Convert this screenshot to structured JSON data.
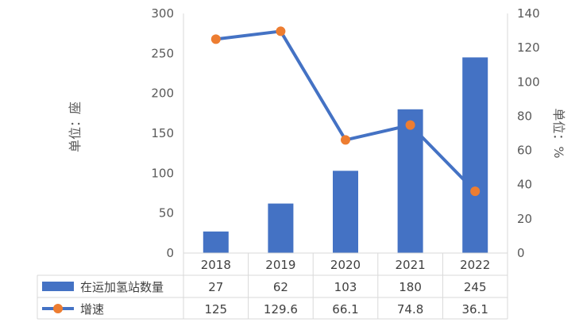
{
  "chart_data": {
    "type": "bar",
    "categories": [
      "2018",
      "2019",
      "2020",
      "2021",
      "2022"
    ],
    "series": [
      {
        "name": "在运加氢站数量",
        "type": "bar",
        "axis": "left",
        "color": "#4472C4",
        "values": [
          27,
          62,
          103,
          180,
          245
        ],
        "labels": [
          "27",
          "62",
          "103",
          "180",
          "245"
        ]
      },
      {
        "name": "增速",
        "type": "line",
        "axis": "right",
        "color": "#4472C4",
        "marker_color": "#ED7D31",
        "values": [
          125,
          129.6,
          66.1,
          74.8,
          36.1
        ],
        "labels": [
          "125",
          "129.6",
          "66.1",
          "74.8",
          "36.1"
        ]
      }
    ],
    "y_left": {
      "label": "单位：座",
      "ylim": [
        0,
        300
      ],
      "ticks": [
        0,
        50,
        100,
        150,
        200,
        250,
        300
      ],
      "tick_labels": [
        "0",
        "50",
        "100",
        "150",
        "200",
        "250",
        "300"
      ]
    },
    "y_right": {
      "label": "单位：%",
      "ylim": [
        0,
        140
      ],
      "ticks": [
        0,
        20,
        40,
        60,
        80,
        100,
        120,
        140
      ],
      "tick_labels": [
        "0",
        "20",
        "40",
        "60",
        "80",
        "100",
        "120",
        "140"
      ]
    },
    "grid": false,
    "legend": "data-table"
  }
}
